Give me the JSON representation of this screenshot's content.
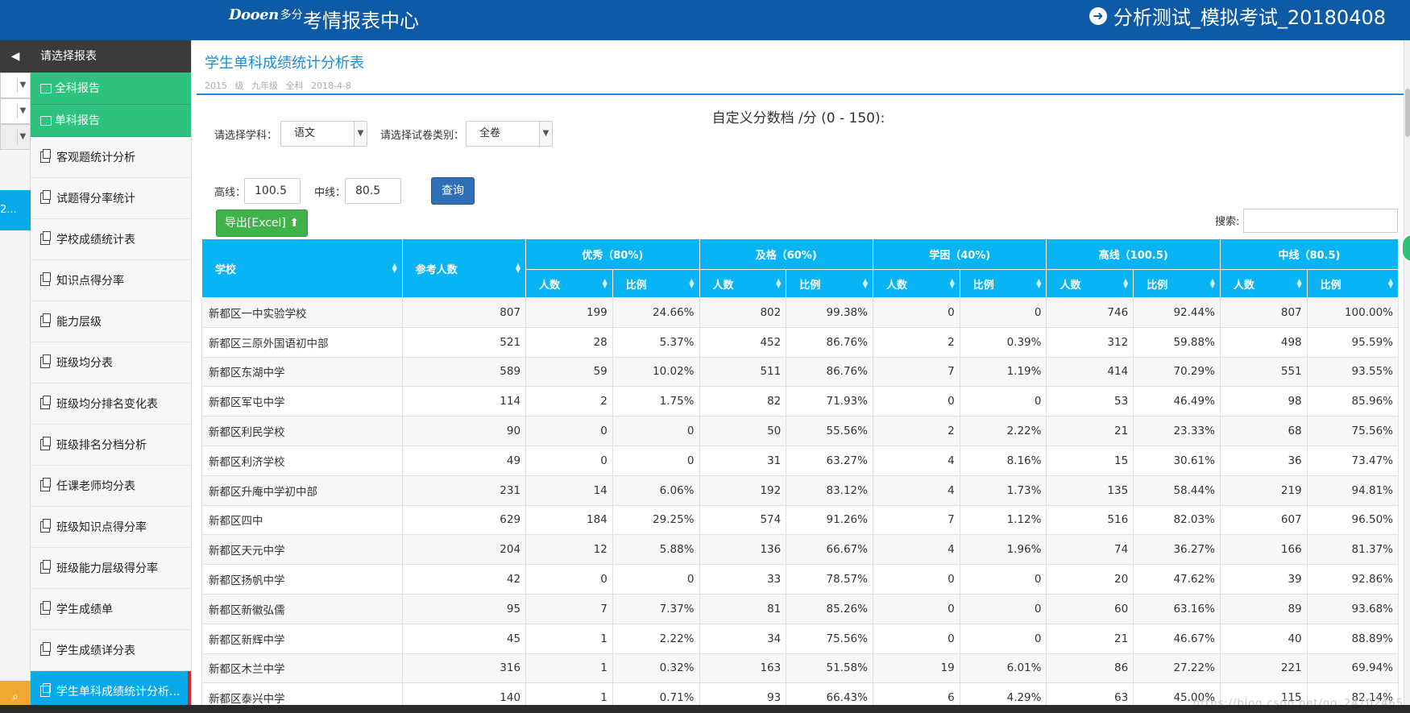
{
  "header": {
    "logo_text": "Dooen",
    "logo_sub": "多分",
    "app_title": "考情报表中心",
    "exam_title": "分析测试_模拟考试_20180408"
  },
  "rail": {
    "active_label": "2..."
  },
  "sidebar": {
    "header": "请选择报表",
    "groups": [
      "全科报告",
      "单科报告"
    ],
    "items": [
      {
        "label": "客观题统计分析"
      },
      {
        "label": "试题得分率统计"
      },
      {
        "label": "学校成绩统计表"
      },
      {
        "label": "知识点得分率"
      },
      {
        "label": "能力层级"
      },
      {
        "label": "班级均分表"
      },
      {
        "label": "班级均分排名变化表"
      },
      {
        "label": "班级排名分档分析"
      },
      {
        "label": "任课老师均分表"
      },
      {
        "label": "班级知识点得分率"
      },
      {
        "label": "班级能力层级得分率"
      },
      {
        "label": "学生成绩单"
      },
      {
        "label": "学生成绩详分表"
      },
      {
        "label": "学生单科成绩统计分析..."
      }
    ]
  },
  "main": {
    "title": "学生单科成绩统计分析表",
    "meta": "2015 级  九年级  全科  2018-4-8",
    "range_label": "自定义分数档 /分 (0 - 150):",
    "subject_label": "请选择学科：",
    "subject_value": "语文",
    "paper_label": "请选择试卷类别：",
    "paper_value": "全卷",
    "high_label": "高线：",
    "high_value": "100.5",
    "mid_label": "中线：",
    "mid_value": "80.5",
    "query_label": "查询",
    "export_label": "导出[Excel]",
    "search_label": "搜索:"
  },
  "table": {
    "col_school": "学校",
    "col_count": "参考人数",
    "groups": [
      "优秀（80%)",
      "及格（60%)",
      "学困（40%)",
      "高线（100.5)",
      "中线（80.5)"
    ],
    "sub_headers": [
      "人数",
      "比例"
    ],
    "rows": [
      [
        "新都区一中实验学校",
        "807",
        "199",
        "24.66%",
        "802",
        "99.38%",
        "0",
        "0",
        "746",
        "92.44%",
        "807",
        "100.00%"
      ],
      [
        "新都区三原外国语初中部",
        "521",
        "28",
        "5.37%",
        "452",
        "86.76%",
        "2",
        "0.39%",
        "312",
        "59.88%",
        "498",
        "95.59%"
      ],
      [
        "新都区东湖中学",
        "589",
        "59",
        "10.02%",
        "511",
        "86.76%",
        "7",
        "1.19%",
        "414",
        "70.29%",
        "551",
        "93.55%"
      ],
      [
        "新都区军屯中学",
        "114",
        "2",
        "1.75%",
        "82",
        "71.93%",
        "0",
        "0",
        "53",
        "46.49%",
        "98",
        "85.96%"
      ],
      [
        "新都区利民学校",
        "90",
        "0",
        "0",
        "50",
        "55.56%",
        "2",
        "2.22%",
        "21",
        "23.33%",
        "68",
        "75.56%"
      ],
      [
        "新都区利济学校",
        "49",
        "0",
        "0",
        "31",
        "63.27%",
        "4",
        "8.16%",
        "15",
        "30.61%",
        "36",
        "73.47%"
      ],
      [
        "新都区升庵中学初中部",
        "231",
        "14",
        "6.06%",
        "192",
        "83.12%",
        "4",
        "1.73%",
        "135",
        "58.44%",
        "219",
        "94.81%"
      ],
      [
        "新都区四中",
        "629",
        "184",
        "29.25%",
        "574",
        "91.26%",
        "7",
        "1.12%",
        "516",
        "82.03%",
        "607",
        "96.50%"
      ],
      [
        "新都区天元中学",
        "204",
        "12",
        "5.88%",
        "136",
        "66.67%",
        "4",
        "1.96%",
        "74",
        "36.27%",
        "166",
        "81.37%"
      ],
      [
        "新都区扬帆中学",
        "42",
        "0",
        "0",
        "33",
        "78.57%",
        "0",
        "0",
        "20",
        "47.62%",
        "39",
        "92.86%"
      ],
      [
        "新都区新徽弘儒",
        "95",
        "7",
        "7.37%",
        "81",
        "85.26%",
        "0",
        "0",
        "60",
        "63.16%",
        "89",
        "93.68%"
      ],
      [
        "新都区新辉中学",
        "45",
        "1",
        "2.22%",
        "34",
        "75.56%",
        "0",
        "0",
        "21",
        "46.67%",
        "40",
        "88.89%"
      ],
      [
        "新都区木兰中学",
        "316",
        "1",
        "0.32%",
        "163",
        "51.58%",
        "19",
        "6.01%",
        "86",
        "27.22%",
        "221",
        "69.94%"
      ],
      [
        "新都区泰兴中学",
        "140",
        "1",
        "0.71%",
        "93",
        "66.43%",
        "6",
        "4.29%",
        "63",
        "45.00%",
        "115",
        "82.14%"
      ]
    ]
  },
  "watermark": "https://blog.csdn.net/qq_24102465",
  "colors": {
    "header_bg": "#0d5aa6",
    "table_header": "#08b4f4",
    "sidebar_green": "#2ec27e",
    "active_blue": "#08a9e8",
    "query_btn": "#2f6fb5",
    "export_btn": "#3fb24a"
  }
}
